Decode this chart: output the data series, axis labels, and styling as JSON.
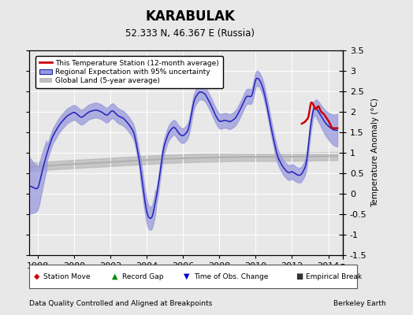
{
  "title": "KARABULAK",
  "subtitle": "52.333 N, 46.367 E (Russia)",
  "ylabel": "Temperature Anomaly (°C)",
  "xlabel_note": "Data Quality Controlled and Aligned at Breakpoints",
  "credit": "Berkeley Earth",
  "xlim": [
    1997.5,
    2014.8
  ],
  "ylim": [
    -1.5,
    3.5
  ],
  "yticks": [
    -1.5,
    -1.0,
    -0.5,
    0.0,
    0.5,
    1.0,
    1.5,
    2.0,
    2.5,
    3.0,
    3.5
  ],
  "xticks": [
    1998,
    2000,
    2002,
    2004,
    2006,
    2008,
    2010,
    2012,
    2014
  ],
  "bg_color": "#e8e8e8",
  "plot_bg_color": "#e8e8e8",
  "grid_color": "#ffffff",
  "regional_color": "#2222bb",
  "regional_fill": "#9999dd",
  "station_color": "#cc0000",
  "global_color": "#b0b0b0",
  "legend_station_label": "This Temperature Station (12-month average)",
  "legend_regional_label": "Regional Expectation with 95% uncertainty",
  "legend_global_label": "Global Land (5-year average)",
  "regional_key_times": [
    1997.5,
    1998.0,
    1998.2,
    1998.5,
    1998.8,
    1999.2,
    1999.6,
    2000.0,
    2000.4,
    2000.8,
    2001.2,
    2001.5,
    2001.8,
    2002.1,
    2002.4,
    2002.7,
    2003.0,
    2003.3,
    2003.6,
    2003.8,
    2004.0,
    2004.15,
    2004.3,
    2004.6,
    2004.9,
    2005.2,
    2005.5,
    2005.8,
    2006.0,
    2006.3,
    2006.6,
    2006.9,
    2007.2,
    2007.5,
    2007.8,
    2008.0,
    2008.3,
    2008.6,
    2008.9,
    2009.2,
    2009.5,
    2009.8,
    2010.0,
    2010.2,
    2010.4,
    2010.6,
    2010.9,
    2011.2,
    2011.5,
    2011.8,
    2012.0,
    2012.3,
    2012.5,
    2012.8,
    2013.0,
    2013.2,
    2013.4,
    2013.6,
    2013.8,
    2014.0,
    2014.3
  ],
  "regional_key_vals": [
    0.2,
    0.1,
    0.5,
    1.0,
    1.4,
    1.7,
    1.9,
    2.0,
    1.85,
    2.0,
    2.05,
    2.0,
    1.9,
    2.05,
    1.9,
    1.85,
    1.7,
    1.5,
    0.8,
    0.1,
    -0.5,
    -0.62,
    -0.6,
    0.1,
    1.1,
    1.5,
    1.65,
    1.45,
    1.4,
    1.55,
    2.3,
    2.5,
    2.45,
    2.2,
    1.9,
    1.75,
    1.8,
    1.75,
    1.85,
    2.1,
    2.4,
    2.35,
    2.85,
    2.8,
    2.6,
    2.2,
    1.5,
    0.9,
    0.65,
    0.5,
    0.55,
    0.45,
    0.45,
    0.7,
    1.6,
    2.15,
    2.05,
    1.9,
    1.75,
    1.65,
    1.55
  ],
  "global_key_times": [
    1997.5,
    1999,
    2001,
    2003,
    2005,
    2007,
    2009,
    2011,
    2013,
    2014.5
  ],
  "global_key_vals": [
    0.65,
    0.7,
    0.75,
    0.8,
    0.85,
    0.88,
    0.9,
    0.9,
    0.91,
    0.92
  ],
  "station_key_times": [
    2012.5,
    2012.7,
    2012.9,
    2013.05,
    2013.15,
    2013.3,
    2013.45,
    2013.6,
    2013.75,
    2013.9,
    2014.05,
    2014.2
  ],
  "station_key_vals": [
    1.7,
    1.75,
    1.85,
    2.25,
    2.2,
    2.05,
    2.15,
    2.0,
    1.95,
    1.85,
    1.75,
    1.6
  ]
}
